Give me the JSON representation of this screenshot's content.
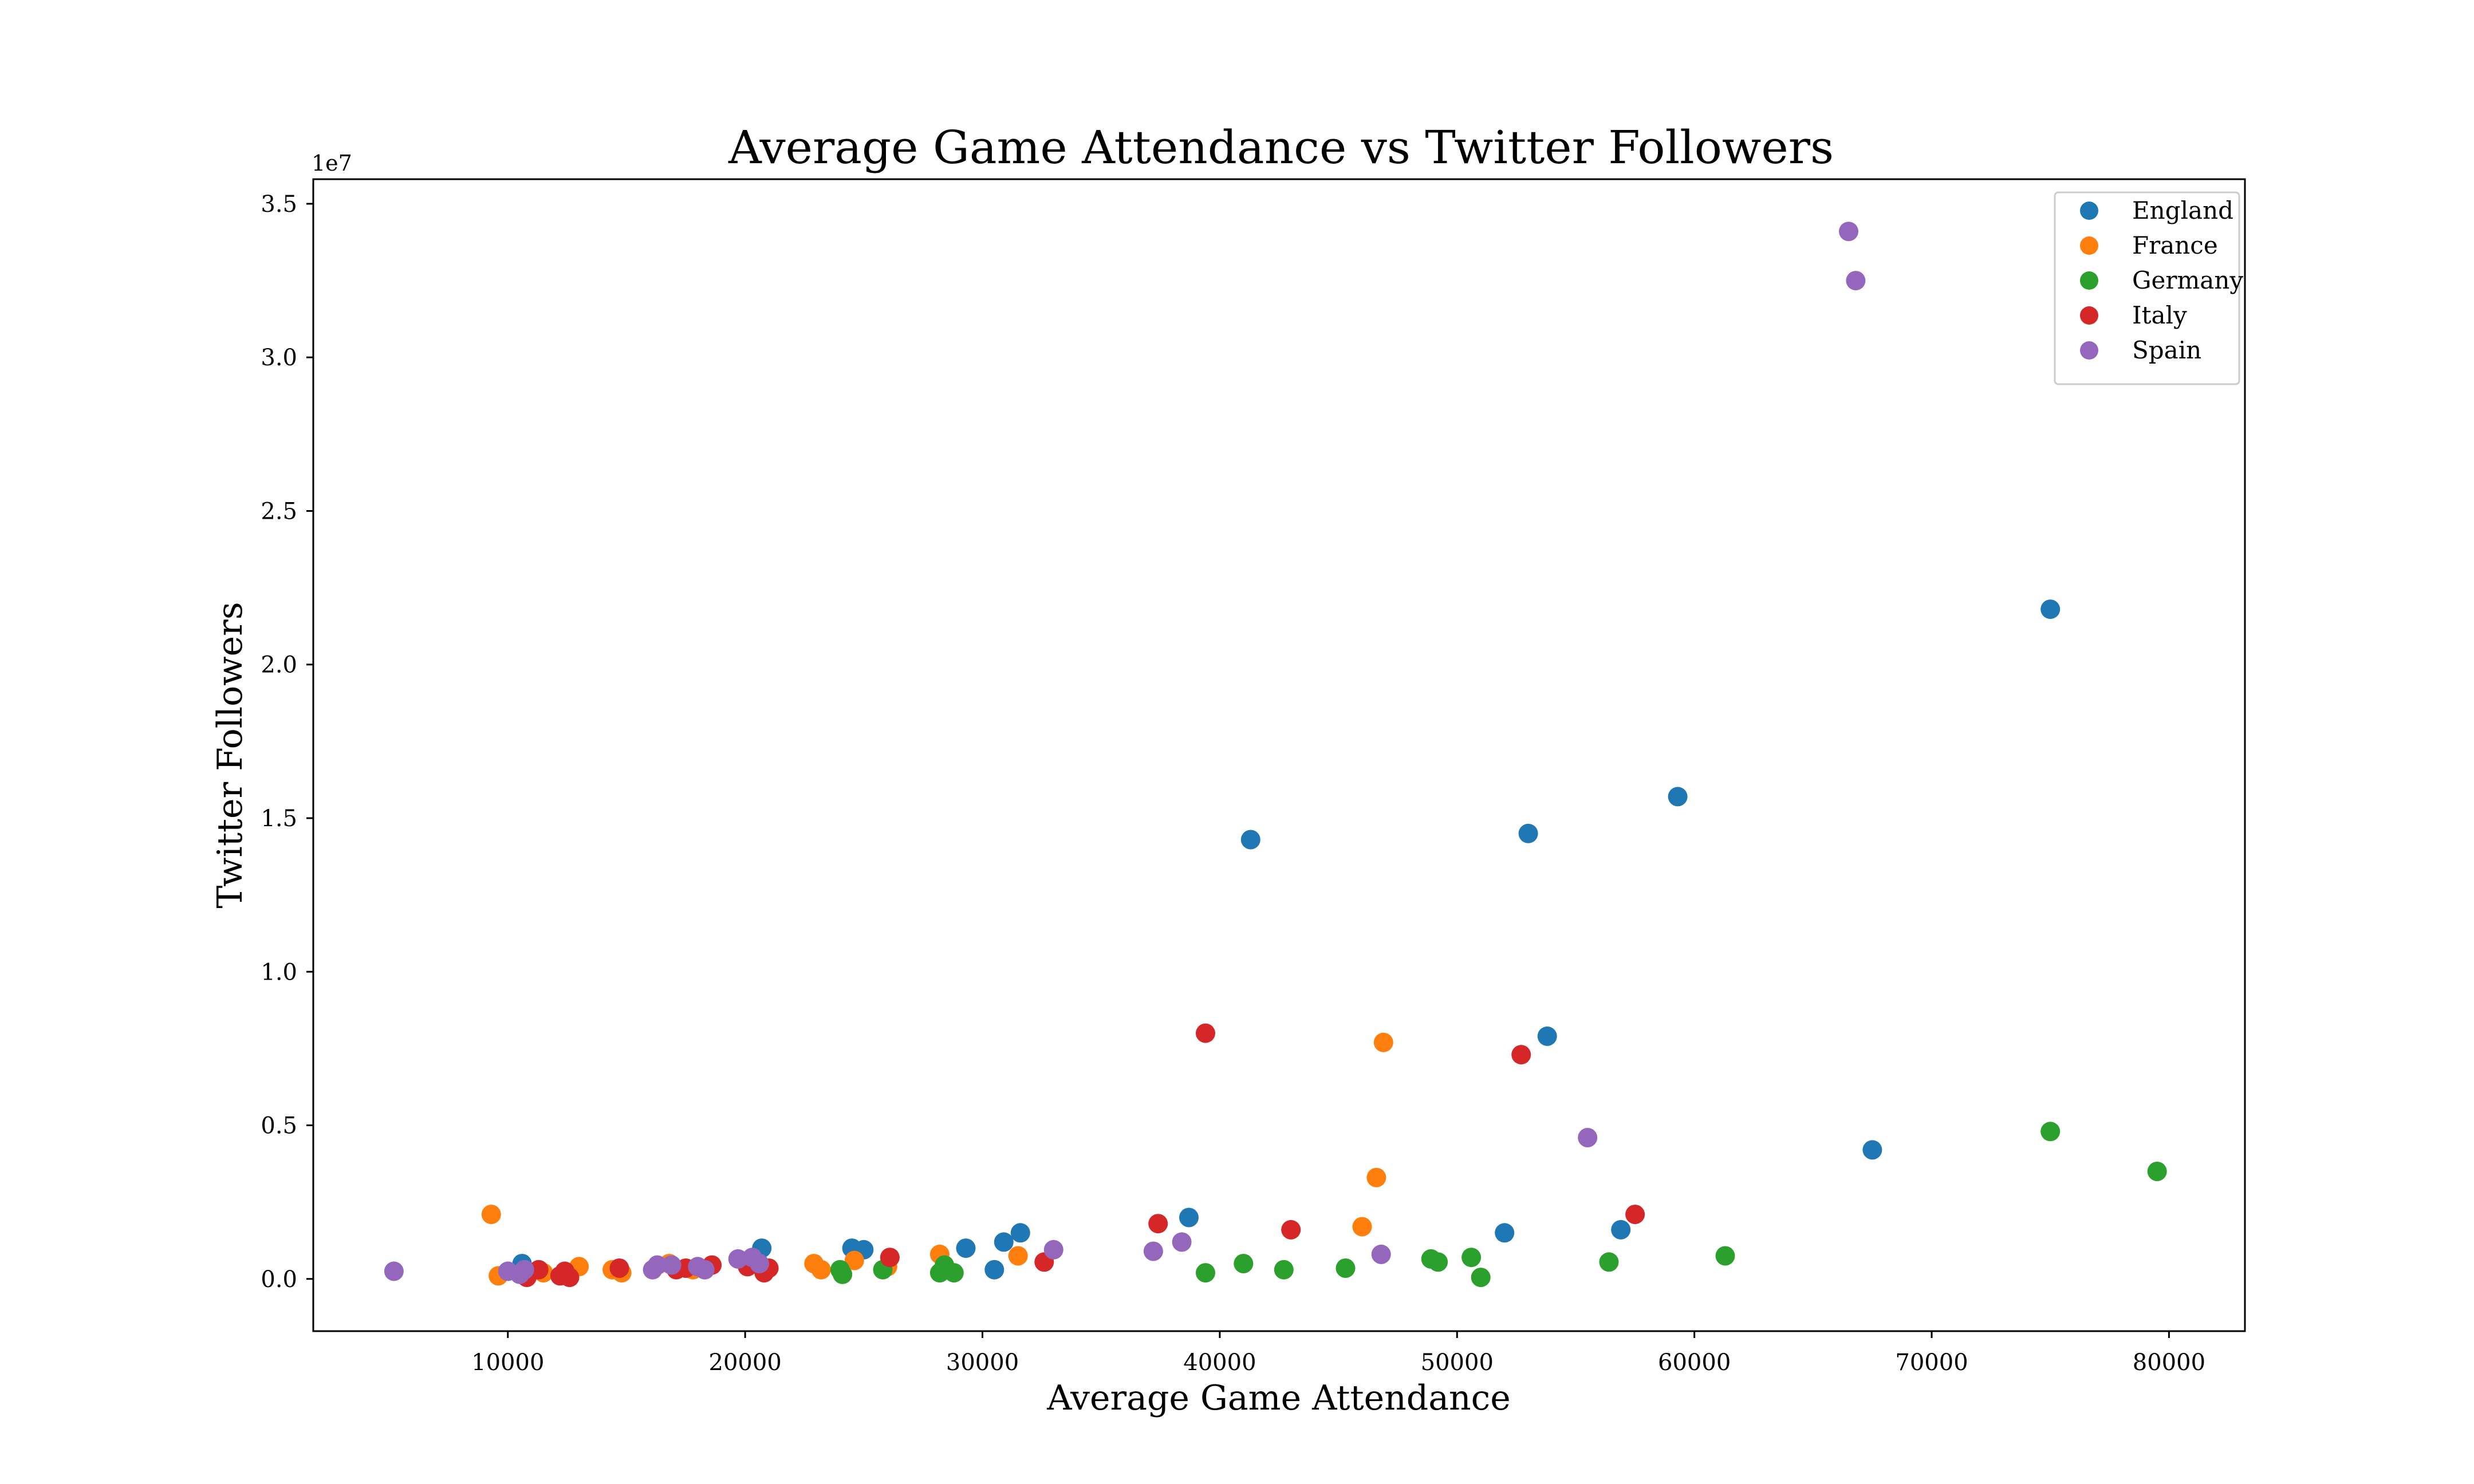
{
  "chart_data": {
    "type": "scatter",
    "title": "Average Game Attendance vs Twitter Followers",
    "xlabel": "Average Game Attendance",
    "ylabel": "Twitter Followers",
    "y_offset_label": "1e7",
    "xlim": [
      1800,
      83200
    ],
    "ylim": [
      -1700000,
      35800000
    ],
    "x_ticks": [
      {
        "value": 10000,
        "label": "10000"
      },
      {
        "value": 20000,
        "label": "20000"
      },
      {
        "value": 30000,
        "label": "30000"
      },
      {
        "value": 40000,
        "label": "40000"
      },
      {
        "value": 50000,
        "label": "50000"
      },
      {
        "value": 60000,
        "label": "60000"
      },
      {
        "value": 70000,
        "label": "70000"
      },
      {
        "value": 80000,
        "label": "80000"
      }
    ],
    "y_ticks": [
      {
        "value": 0,
        "label": "0.0"
      },
      {
        "value": 5000000,
        "label": "0.5"
      },
      {
        "value": 10000000,
        "label": "1.0"
      },
      {
        "value": 15000000,
        "label": "1.5"
      },
      {
        "value": 20000000,
        "label": "2.0"
      },
      {
        "value": 25000000,
        "label": "2.5"
      },
      {
        "value": 30000000,
        "label": "3.0"
      },
      {
        "value": 35000000,
        "label": "3.5"
      }
    ],
    "grid": false,
    "legend_position": "top-right",
    "series": [
      {
        "name": "England",
        "color": "#1f77b4",
        "x": [
          10600,
          20700,
          24500,
          25000,
          29300,
          30500,
          30900,
          31600,
          38700,
          41300,
          52000,
          53000,
          53800,
          56900,
          59300,
          67500,
          75000
        ],
        "y": [
          500000,
          1000000,
          1000000,
          950000,
          1000000,
          300000,
          1200000,
          1500000,
          2000000,
          14300000,
          1500000,
          14500000,
          7900000,
          1600000,
          15700000,
          4200000,
          21800000
        ]
      },
      {
        "name": "France",
        "color": "#ff7f0e",
        "x": [
          9300,
          9600,
          11500,
          13000,
          14400,
          14800,
          16800,
          17800,
          18300,
          20100,
          22900,
          23200,
          24100,
          24600,
          26000,
          28200,
          31500,
          46000,
          46600,
          46900
        ],
        "y": [
          2100000,
          100000,
          200000,
          400000,
          300000,
          200000,
          500000,
          300000,
          300000,
          400000,
          500000,
          300000,
          150000,
          600000,
          400000,
          800000,
          750000,
          1700000,
          3300000,
          7700000
        ]
      },
      {
        "name": "Germany",
        "color": "#2ca02c",
        "x": [
          24000,
          24100,
          25800,
          28200,
          28400,
          28800,
          39400,
          41000,
          42700,
          45300,
          48900,
          49200,
          50600,
          51000,
          56400,
          61300,
          75000,
          79500
        ],
        "y": [
          300000,
          150000,
          300000,
          200000,
          450000,
          200000,
          200000,
          500000,
          300000,
          350000,
          650000,
          550000,
          700000,
          50000,
          550000,
          750000,
          4800000,
          3500000
        ]
      },
      {
        "name": "Italy",
        "color": "#d62728",
        "x": [
          10800,
          11300,
          12200,
          12400,
          12600,
          14700,
          17100,
          17500,
          18600,
          20100,
          20800,
          21000,
          26100,
          32600,
          37400,
          39400,
          43000,
          52700,
          57500
        ],
        "y": [
          50000,
          300000,
          100000,
          250000,
          50000,
          350000,
          300000,
          350000,
          450000,
          400000,
          200000,
          350000,
          700000,
          550000,
          1800000,
          8000000,
          1600000,
          7300000,
          2100000
        ]
      },
      {
        "name": "Spain",
        "color": "#9467bd",
        "x": [
          5200,
          10000,
          10500,
          10700,
          16100,
          16300,
          16900,
          18000,
          18300,
          19700,
          20300,
          20600,
          33000,
          37200,
          38400,
          46800,
          55500,
          66500,
          66800
        ],
        "y": [
          250000,
          250000,
          150000,
          300000,
          300000,
          450000,
          450000,
          400000,
          300000,
          650000,
          700000,
          500000,
          950000,
          900000,
          1200000,
          800000,
          4600000,
          34100000,
          32500000
        ]
      }
    ]
  }
}
